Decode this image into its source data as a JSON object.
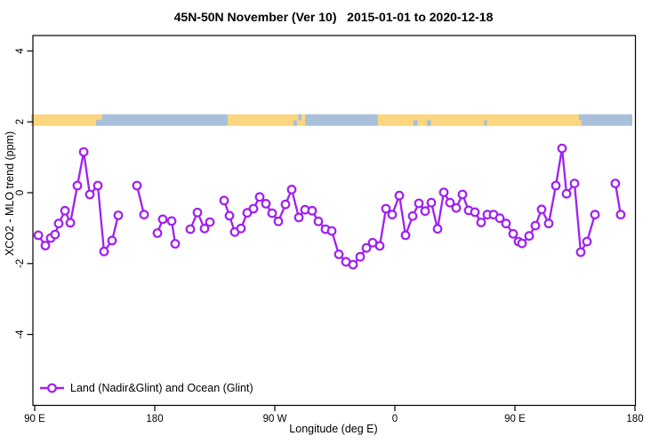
{
  "chart": {
    "title": "45N-50N November (Ver 10)   2015-01-01 to 2020-12-18",
    "xlabel": "Longitude (deg E)",
    "ylabel": "XCO2 - MLO trend (ppm)",
    "legend_label": "Land (Nadir&Glint) and Ocean (Glint)"
  },
  "chart_data": {
    "type": "line",
    "title": "45N-50N November (Ver 10)   2015-01-01 to 2020-12-18",
    "xlabel": "Longitude (deg E)",
    "ylabel": "XCO2 - MLO trend (ppm)",
    "x_axis": {
      "units": "degrees east, wrapping 90E -> 180 -> 90W -> 0 -> 90E -> 180",
      "ticks": [
        90,
        180,
        270,
        360,
        450,
        540
      ],
      "tick_labels": [
        "90 E",
        "180",
        "90 W",
        "0",
        "90 E",
        "180"
      ],
      "range": [
        88,
        540
      ]
    },
    "y_axis": {
      "ticks": [
        -4,
        -2,
        0,
        2,
        4
      ],
      "tick_labels": [
        "-4",
        "-2",
        "0",
        "2",
        "4"
      ],
      "range": [
        -6,
        4.4
      ],
      "grid": false
    },
    "legend": {
      "label": "Land (Nadir&Glint) and Ocean (Glint)",
      "position": "bottom-left",
      "marker": "open-circle-on-line"
    },
    "colors": {
      "series": "#A020F0",
      "point_fill": "#ffffff",
      "land_band": "#FBD57F",
      "ocean_band": "#A9BFDA",
      "axis": "#000000"
    },
    "land_ocean_band": {
      "description": "thick horizontal strip near y=2 showing land (tan) vs ocean (blue) along longitude",
      "y_value": 2.05,
      "segments": [
        {
          "surface": "land",
          "from": 87.3,
          "to": 136
        },
        {
          "surface": "ocean",
          "from": 136,
          "to": 234.7
        },
        {
          "surface": "land",
          "from": 234.7,
          "to": 292.7
        },
        {
          "surface": "ocean",
          "from": 292.7,
          "to": 347.3
        },
        {
          "surface": "land",
          "from": 347.3,
          "to": 498
        },
        {
          "surface": "ocean",
          "from": 498,
          "to": 538
        }
      ],
      "specks": [
        {
          "surface": "land",
          "from": 136,
          "to": 140.5,
          "half": "top"
        },
        {
          "surface": "ocean",
          "from": 284,
          "to": 286.5,
          "half": "bottom"
        },
        {
          "surface": "ocean",
          "from": 287.5,
          "to": 290,
          "half": "top"
        },
        {
          "surface": "ocean",
          "from": 374,
          "to": 377,
          "half": "bottom"
        },
        {
          "surface": "ocean",
          "from": 384,
          "to": 387,
          "half": "bottom"
        },
        {
          "surface": "ocean",
          "from": 427,
          "to": 429,
          "half": "bottom"
        },
        {
          "surface": "land",
          "from": 498,
          "to": 500,
          "half": "bottom"
        }
      ]
    },
    "series": [
      {
        "name": "Land (Nadir&Glint) and Ocean (Glint)",
        "points_format": "[longitude_deg_e_extended, xco2_minus_mlo_trend_ppm]",
        "gap_separated_runs": [
          [
            [
              92.7,
              -1.2
            ],
            [
              98,
              -1.49
            ],
            [
              102,
              -1.28
            ],
            [
              105.3,
              -1.18
            ],
            [
              108,
              -0.87
            ],
            [
              112.7,
              -0.51
            ],
            [
              116.7,
              -0.85
            ],
            [
              122,
              0.2
            ],
            [
              126.7,
              1.15
            ],
            [
              131.3,
              -0.05
            ],
            [
              137.3,
              0.2
            ],
            [
              142,
              -1.66
            ],
            [
              148,
              -1.35
            ],
            [
              152.7,
              -0.64
            ]
          ],
          [
            [
              166.7,
              0.2
            ],
            [
              172,
              -0.62
            ]
          ],
          [
            [
              182,
              -1.14
            ],
            [
              186,
              -0.75
            ],
            [
              192.7,
              -0.8
            ],
            [
              195.3,
              -1.44
            ]
          ],
          [
            [
              206.7,
              -1.03
            ],
            [
              212,
              -0.56
            ],
            [
              217.3,
              -1.01
            ],
            [
              221.3,
              -0.83
            ]
          ],
          [
            [
              232,
              -0.22
            ],
            [
              236,
              -0.65
            ],
            [
              240,
              -1.11
            ],
            [
              244.7,
              -1.01
            ],
            [
              249.3,
              -0.57
            ],
            [
              254,
              -0.45
            ],
            [
              258.7,
              -0.12
            ],
            [
              263.3,
              -0.31
            ],
            [
              268,
              -0.58
            ],
            [
              272.7,
              -0.81
            ],
            [
              278,
              -0.33
            ],
            [
              282.7,
              0.09
            ],
            [
              288,
              -0.7
            ],
            [
              292.7,
              -0.48
            ],
            [
              298,
              -0.51
            ],
            [
              302.7,
              -0.81
            ],
            [
              308,
              -1.03
            ],
            [
              312.7,
              -1.08
            ],
            [
              318,
              -1.74
            ],
            [
              323.3,
              -1.95
            ],
            [
              328.7,
              -2.03
            ],
            [
              334,
              -1.81
            ],
            [
              338.7,
              -1.56
            ],
            [
              343.3,
              -1.41
            ],
            [
              348.7,
              -1.5
            ],
            [
              353.3,
              -0.45
            ],
            [
              358,
              -0.62
            ],
            [
              363.3,
              -0.08
            ],
            [
              368,
              -1.2
            ],
            [
              373.3,
              -0.66
            ],
            [
              378,
              -0.3
            ],
            [
              382.7,
              -0.52
            ],
            [
              387.3,
              -0.28
            ],
            [
              392,
              -1.02
            ],
            [
              396.7,
              0.01
            ],
            [
              401.3,
              -0.28
            ],
            [
              406,
              -0.43
            ],
            [
              410.7,
              -0.05
            ],
            [
              415.3,
              -0.5
            ],
            [
              420,
              -0.55
            ],
            [
              424.7,
              -0.84
            ],
            [
              429.3,
              -0.62
            ],
            [
              434,
              -0.62
            ],
            [
              438.7,
              -0.72
            ],
            [
              443.3,
              -0.87
            ],
            [
              448.7,
              -1.16
            ],
            [
              452.7,
              -1.38
            ],
            [
              455.3,
              -1.43
            ],
            [
              460.7,
              -1.22
            ],
            [
              465.3,
              -0.93
            ],
            [
              470,
              -0.47
            ],
            [
              475.3,
              -0.87
            ],
            [
              480.7,
              0.2
            ],
            [
              485.3,
              1.25
            ],
            [
              488.7,
              -0.03
            ],
            [
              494.7,
              0.26
            ],
            [
              499.3,
              -1.68
            ],
            [
              504,
              -1.38
            ],
            [
              510,
              -0.62
            ]
          ],
          [
            [
              525.3,
              0.26
            ],
            [
              529.3,
              -0.62
            ]
          ]
        ]
      }
    ]
  }
}
